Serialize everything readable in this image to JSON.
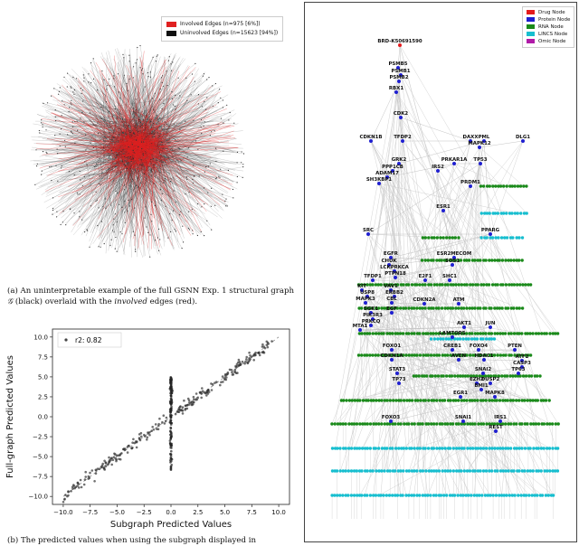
{
  "panel_a": {
    "legend": [
      {
        "label": "Involved Edges (n=975 [6%])",
        "color": "#e02020"
      },
      {
        "label": "Uninvolved Edges (n=15623 [94%])",
        "color": "#111111"
      }
    ],
    "caption_prefix": "(a) An uninterpretable example of the full GSNN Exp. 1 structural graph",
    "caption_graph_symbol": "𝒢",
    "caption_mid": "(black) overlaid with the",
    "caption_italic": "involved",
    "caption_suffix": "edges (red)."
  },
  "panel_b": {
    "caption": "(b) The predicted values when using the subgraph displayed in"
  },
  "chart_data": {
    "type": "scatter",
    "title": "",
    "xlabel": "Subgraph Predicted Values",
    "ylabel": "Full-graph Predicted Values",
    "xlim": [
      -11,
      11
    ],
    "ylim": [
      -11,
      11
    ],
    "xticks": [
      -10.0,
      -7.5,
      -5.0,
      -2.5,
      0.0,
      2.5,
      5.0,
      7.5,
      10.0
    ],
    "yticks": [
      -10.0,
      -7.5,
      -5.0,
      -2.5,
      0.0,
      2.5,
      5.0,
      7.5,
      10.0
    ],
    "xtick_labels": [
      "−10.0",
      "−7.5",
      "−5.0",
      "−2.5",
      "0.0",
      "2.5",
      "5.0",
      "7.5",
      "10.0"
    ],
    "ytick_labels": [
      "−10.0",
      "−7.5",
      "−5.0",
      "−2.5",
      "0.0",
      "2.5",
      "5.0",
      "7.5",
      "10.0"
    ],
    "legend_label": "r2: 0.82",
    "legend_position": "top-left",
    "reference_line": "y = x (dashed)",
    "points_description": "points along y=x from about -10 to 9.5, plus a vertical band at x=0 spanning about -7.5 to 5"
  },
  "panel_c": {
    "legend": [
      {
        "label": "Drug Node",
        "color": "#e41a1c"
      },
      {
        "label": "Protein Node",
        "color": "#1f1fd0"
      },
      {
        "label": "RNA Node",
        "color": "#1a8a1a"
      },
      {
        "label": "LINCS Node",
        "color": "#17becf"
      },
      {
        "label": "Omic Node",
        "color": "#b01aa8"
      }
    ],
    "labels": [
      "BRD-K50691590",
      "PSMB5",
      "PSMB1",
      "PSMB2",
      "RBX1",
      "CDK2",
      "CDKN1B",
      "TFDP2",
      "DAXX",
      "PML",
      "MAPK12",
      "DLG1",
      "GRK2",
      "PPP1CB",
      "ADAM17",
      "SH3KBP1",
      "PRKAR1A",
      "IRS2",
      "TP53",
      "PRDM1",
      "ESR1",
      "SRC",
      "PPARG",
      "EGFR",
      "CHUK",
      "LCKPRKCA",
      "PTPN18",
      "ESR2MECOM",
      "SOS1",
      "TFDP1",
      "KIT",
      "USP8",
      "MAPK3",
      "VAV1",
      "ERBB2",
      "CBL",
      "E2F1",
      "SHC1",
      "CDKN2A",
      "ATM",
      "SGK1",
      "PIK3R3",
      "PRKCQ",
      "EGF",
      "MTA1",
      "AKT1",
      "LAMTOR5",
      "JUN",
      "FOXO1",
      "CDKN1A",
      "CREB1",
      "AVEN",
      "FOXO4",
      "HDAC1",
      "PTEN",
      "ATF2",
      "CASP3",
      "STAT3",
      "TP73",
      "SNAI2",
      "EZH2",
      "DUSP2",
      "BMI1",
      "TP63",
      "EGR1",
      "MAPK8",
      "FOXO3",
      "SNAI1",
      "IRS1",
      "REST"
    ]
  }
}
